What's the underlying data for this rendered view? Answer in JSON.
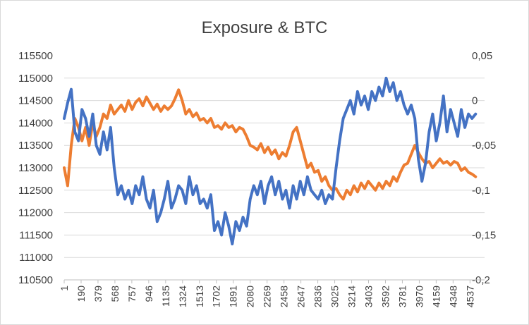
{
  "chart_data": {
    "type": "line",
    "title": "Exposure & BTC",
    "xlabel": "",
    "ylabel": "",
    "y_left": {
      "min": 110500,
      "max": 115500,
      "ticks": [
        "115500",
        "115000",
        "114500",
        "114000",
        "113500",
        "113000",
        "112500",
        "112000",
        "111500",
        "111000",
        "110500"
      ]
    },
    "y_right": {
      "min": -0.2,
      "max": 0.05,
      "ticks": [
        "0,05",
        "0",
        "-0,05",
        "-0,1",
        "-0,15",
        "-0,2"
      ]
    },
    "x_ticks": [
      "1",
      "190",
      "379",
      "568",
      "757",
      "946",
      "1135",
      "1324",
      "1513",
      "1702",
      "1891",
      "2080",
      "2269",
      "2458",
      "2647",
      "2836",
      "3025",
      "3214",
      "3403",
      "3592",
      "3781",
      "3970",
      "4159",
      "4348",
      "4537"
    ],
    "x_max": 4700,
    "grid": true,
    "series": [
      {
        "axis": "left",
        "color": "#4472c4",
        "points": [
          [
            1,
            114100
          ],
          [
            40,
            114450
          ],
          [
            80,
            114750
          ],
          [
            120,
            113800
          ],
          [
            160,
            113600
          ],
          [
            200,
            114300
          ],
          [
            240,
            114100
          ],
          [
            280,
            113700
          ],
          [
            320,
            114200
          ],
          [
            360,
            113500
          ],
          [
            400,
            113300
          ],
          [
            440,
            113800
          ],
          [
            480,
            113400
          ],
          [
            520,
            113900
          ],
          [
            560,
            113000
          ],
          [
            600,
            112400
          ],
          [
            640,
            112600
          ],
          [
            680,
            112300
          ],
          [
            720,
            112500
          ],
          [
            760,
            112200
          ],
          [
            800,
            112600
          ],
          [
            840,
            112400
          ],
          [
            880,
            112800
          ],
          [
            920,
            112300
          ],
          [
            960,
            112100
          ],
          [
            1000,
            112500
          ],
          [
            1040,
            111800
          ],
          [
            1080,
            112000
          ],
          [
            1120,
            112300
          ],
          [
            1160,
            112700
          ],
          [
            1200,
            112100
          ],
          [
            1240,
            112300
          ],
          [
            1280,
            112600
          ],
          [
            1320,
            112500
          ],
          [
            1360,
            112200
          ],
          [
            1400,
            112800
          ],
          [
            1440,
            112400
          ],
          [
            1480,
            112600
          ],
          [
            1520,
            112200
          ],
          [
            1560,
            112300
          ],
          [
            1600,
            112100
          ],
          [
            1640,
            112400
          ],
          [
            1680,
            111600
          ],
          [
            1720,
            111800
          ],
          [
            1760,
            111500
          ],
          [
            1800,
            112000
          ],
          [
            1840,
            111700
          ],
          [
            1880,
            111300
          ],
          [
            1920,
            111800
          ],
          [
            1960,
            111600
          ],
          [
            2000,
            111900
          ],
          [
            2040,
            111700
          ],
          [
            2080,
            112300
          ],
          [
            2120,
            112600
          ],
          [
            2160,
            112400
          ],
          [
            2200,
            112700
          ],
          [
            2240,
            112200
          ],
          [
            2280,
            112600
          ],
          [
            2320,
            112800
          ],
          [
            2360,
            112400
          ],
          [
            2400,
            112700
          ],
          [
            2440,
            112300
          ],
          [
            2480,
            112500
          ],
          [
            2520,
            112100
          ],
          [
            2560,
            112600
          ],
          [
            2600,
            112300
          ],
          [
            2640,
            112700
          ],
          [
            2680,
            112400
          ],
          [
            2720,
            112800
          ],
          [
            2760,
            112500
          ],
          [
            2800,
            112400
          ],
          [
            2840,
            112300
          ],
          [
            2880,
            112500
          ],
          [
            2920,
            112200
          ],
          [
            2960,
            112400
          ],
          [
            3000,
            112300
          ],
          [
            3040,
            113000
          ],
          [
            3080,
            113600
          ],
          [
            3120,
            114100
          ],
          [
            3160,
            114300
          ],
          [
            3200,
            114500
          ],
          [
            3240,
            114200
          ],
          [
            3280,
            114700
          ],
          [
            3320,
            114400
          ],
          [
            3360,
            114600
          ],
          [
            3400,
            114300
          ],
          [
            3440,
            114700
          ],
          [
            3480,
            114500
          ],
          [
            3520,
            114800
          ],
          [
            3560,
            114600
          ],
          [
            3600,
            115000
          ],
          [
            3640,
            114700
          ],
          [
            3680,
            114900
          ],
          [
            3720,
            114500
          ],
          [
            3760,
            114700
          ],
          [
            3800,
            114400
          ],
          [
            3840,
            114200
          ],
          [
            3880,
            114400
          ],
          [
            3920,
            114100
          ],
          [
            3960,
            113200
          ],
          [
            4000,
            112700
          ],
          [
            4040,
            113100
          ],
          [
            4080,
            113800
          ],
          [
            4120,
            114200
          ],
          [
            4160,
            113600
          ],
          [
            4200,
            114000
          ],
          [
            4240,
            114600
          ],
          [
            4280,
            113800
          ],
          [
            4320,
            114300
          ],
          [
            4360,
            114000
          ],
          [
            4400,
            113700
          ],
          [
            4440,
            114300
          ],
          [
            4480,
            113900
          ],
          [
            4520,
            114200
          ],
          [
            4560,
            114100
          ],
          [
            4600,
            114200
          ]
        ]
      },
      {
        "axis": "right",
        "color": "#ed7d31",
        "points": [
          [
            1,
            -0.075
          ],
          [
            40,
            -0.095
          ],
          [
            80,
            -0.05
          ],
          [
            120,
            -0.02
          ],
          [
            160,
            -0.03
          ],
          [
            200,
            -0.045
          ],
          [
            240,
            -0.03
          ],
          [
            280,
            -0.05
          ],
          [
            320,
            -0.025
          ],
          [
            360,
            -0.04
          ],
          [
            400,
            -0.03
          ],
          [
            440,
            -0.015
          ],
          [
            480,
            -0.02
          ],
          [
            520,
            -0.005
          ],
          [
            560,
            -0.015
          ],
          [
            600,
            -0.01
          ],
          [
            640,
            -0.005
          ],
          [
            680,
            -0.012
          ],
          [
            720,
            0.0
          ],
          [
            760,
            -0.01
          ],
          [
            800,
            -0.002
          ],
          [
            840,
            0.002
          ],
          [
            880,
            -0.006
          ],
          [
            920,
            0.004
          ],
          [
            960,
            -0.003
          ],
          [
            1000,
            -0.01
          ],
          [
            1040,
            -0.004
          ],
          [
            1080,
            -0.012
          ],
          [
            1120,
            -0.006
          ],
          [
            1160,
            -0.01
          ],
          [
            1200,
            -0.006
          ],
          [
            1240,
            0.002
          ],
          [
            1280,
            0.012
          ],
          [
            1320,
            0.0
          ],
          [
            1360,
            -0.015
          ],
          [
            1400,
            -0.01
          ],
          [
            1440,
            -0.018
          ],
          [
            1480,
            -0.014
          ],
          [
            1520,
            -0.022
          ],
          [
            1560,
            -0.02
          ],
          [
            1600,
            -0.025
          ],
          [
            1640,
            -0.02
          ],
          [
            1680,
            -0.03
          ],
          [
            1720,
            -0.028
          ],
          [
            1760,
            -0.032
          ],
          [
            1800,
            -0.025
          ],
          [
            1840,
            -0.03
          ],
          [
            1880,
            -0.028
          ],
          [
            1920,
            -0.035
          ],
          [
            1960,
            -0.03
          ],
          [
            2000,
            -0.032
          ],
          [
            2040,
            -0.04
          ],
          [
            2080,
            -0.05
          ],
          [
            2120,
            -0.052
          ],
          [
            2160,
            -0.055
          ],
          [
            2200,
            -0.048
          ],
          [
            2240,
            -0.058
          ],
          [
            2280,
            -0.052
          ],
          [
            2320,
            -0.06
          ],
          [
            2360,
            -0.055
          ],
          [
            2400,
            -0.065
          ],
          [
            2440,
            -0.058
          ],
          [
            2480,
            -0.062
          ],
          [
            2520,
            -0.05
          ],
          [
            2560,
            -0.035
          ],
          [
            2600,
            -0.03
          ],
          [
            2640,
            -0.045
          ],
          [
            2680,
            -0.06
          ],
          [
            2720,
            -0.075
          ],
          [
            2760,
            -0.07
          ],
          [
            2800,
            -0.08
          ],
          [
            2840,
            -0.078
          ],
          [
            2880,
            -0.09
          ],
          [
            2920,
            -0.085
          ],
          [
            2960,
            -0.095
          ],
          [
            3000,
            -0.1
          ],
          [
            3040,
            -0.098
          ],
          [
            3080,
            -0.105
          ],
          [
            3120,
            -0.11
          ],
          [
            3160,
            -0.1
          ],
          [
            3200,
            -0.105
          ],
          [
            3240,
            -0.095
          ],
          [
            3280,
            -0.102
          ],
          [
            3320,
            -0.092
          ],
          [
            3360,
            -0.098
          ],
          [
            3400,
            -0.09
          ],
          [
            3440,
            -0.095
          ],
          [
            3480,
            -0.1
          ],
          [
            3520,
            -0.092
          ],
          [
            3560,
            -0.098
          ],
          [
            3600,
            -0.09
          ],
          [
            3640,
            -0.095
          ],
          [
            3680,
            -0.085
          ],
          [
            3720,
            -0.09
          ],
          [
            3760,
            -0.08
          ],
          [
            3800,
            -0.072
          ],
          [
            3840,
            -0.07
          ],
          [
            3880,
            -0.06
          ],
          [
            3920,
            -0.05
          ],
          [
            3960,
            -0.058
          ],
          [
            4000,
            -0.065
          ],
          [
            4040,
            -0.07
          ],
          [
            4080,
            -0.068
          ],
          [
            4120,
            -0.075
          ],
          [
            4160,
            -0.07
          ],
          [
            4200,
            -0.065
          ],
          [
            4240,
            -0.07
          ],
          [
            4280,
            -0.068
          ],
          [
            4320,
            -0.072
          ],
          [
            4360,
            -0.068
          ],
          [
            4400,
            -0.07
          ],
          [
            4440,
            -0.078
          ],
          [
            4480,
            -0.075
          ],
          [
            4520,
            -0.08
          ],
          [
            4560,
            -0.082
          ],
          [
            4600,
            -0.085
          ]
        ]
      }
    ]
  }
}
